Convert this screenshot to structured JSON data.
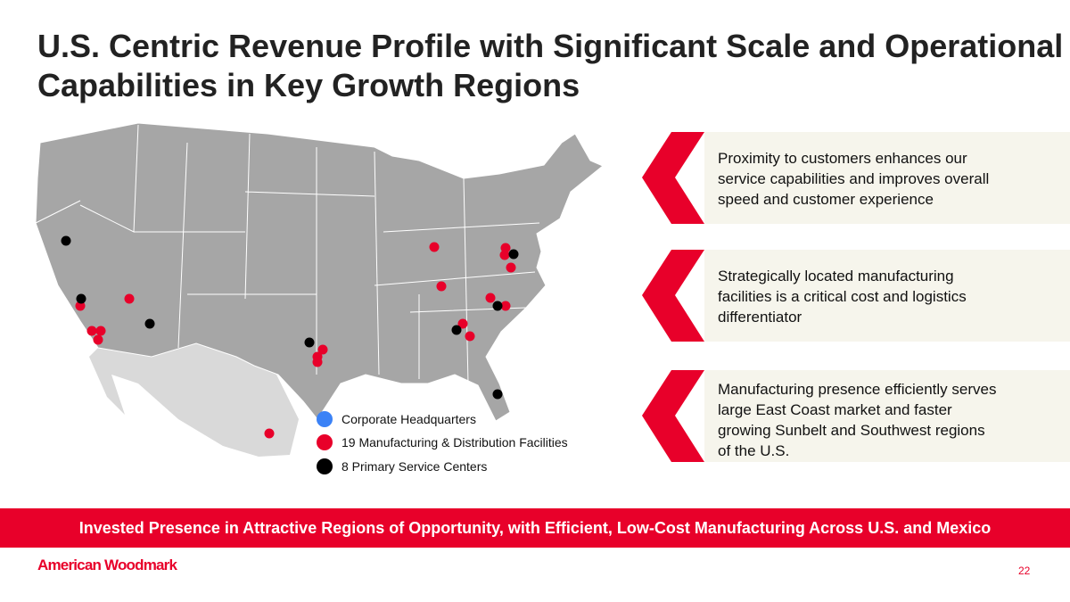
{
  "title": "U.S. Centric Revenue Profile with Significant Scale and Operational Capabilities in Key Growth Regions",
  "legend": [
    {
      "label": "Corporate Headquarters",
      "color": "#3b82f6"
    },
    {
      "label": "19 Manufacturing & Distribution Facilities",
      "color": "#e8002a"
    },
    {
      "label": "8 Primary Service Centers",
      "color": "#000000"
    }
  ],
  "callouts": [
    "Proximity to customers enhances our service capabilities and improves overall speed and customer experience",
    "Strategically located manufacturing facilities is a critical cost and logistics differentiator",
    "Manufacturing presence efficiently serves large East Coast market and faster growing Sunbelt and Southwest regions of the U.S."
  ],
  "banner": "Invested Presence in Attractive Regions of Opportunity, with Efficient, Low-Cost Manufacturing Across U.S. and Mexico",
  "logo": "American Woodmark",
  "page_number": "22",
  "colors": {
    "accent": "#e8002a",
    "map": "#a6a6a6",
    "mexico": "#d9d9d9",
    "callout_bg": "#f6f5ec"
  }
}
